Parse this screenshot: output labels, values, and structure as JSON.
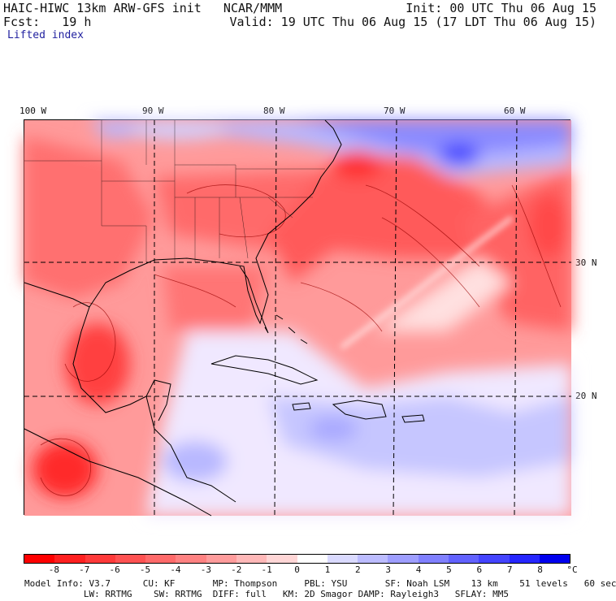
{
  "header": {
    "model_line": "HAIC-HIWC 13km ARW-GFS init   NCAR/MMM",
    "forecast_line": "Fcst:   19 h",
    "init_line": "Init: 00 UTC Thu 06 Aug 15",
    "valid_line": "Valid: 19 UTC Thu 06 Aug 15 (17 LDT Thu 06 Aug 15)",
    "field_label": "Lifted index"
  },
  "axes": {
    "longitude_labels": [
      "100 W",
      "90 W",
      "80 W",
      "70 W",
      "60 W"
    ],
    "latitude_labels": [
      "30 N",
      "20 N"
    ]
  },
  "colorbar": {
    "labels": [
      "-8",
      "-7",
      "-6",
      "-5",
      "-4",
      "-3",
      "-2",
      "-1",
      "0",
      "1",
      "2",
      "3",
      "4",
      "5",
      "6",
      "7",
      "8"
    ],
    "unit": "°C",
    "colors": [
      "#ff0000",
      "#ff2020",
      "#ff3a3a",
      "#ff5252",
      "#ff6a6a",
      "#ff8282",
      "#ff9c9c",
      "#ffb8b8",
      "#ffd6d6",
      "#ffffff",
      "#dadaff",
      "#bcbcff",
      "#9e9eff",
      "#8080ff",
      "#6262ff",
      "#4444ff",
      "#2626ff",
      "#0000ee"
    ]
  },
  "model_info": {
    "line1": "Model Info: V3.7      CU: KF       MP: Thompson     PBL: YSU       SF: Noah LSM    13 km    51 levels   60 sec",
    "line2": "           LW: RRTMG    SW: RRTMG  DIFF: full   KM: 2D Smagor DAMP: Rayleigh3   SFLAY: MM5"
  },
  "map_layers": [
    "lifted-index-shading",
    "coastlines",
    "state-borders",
    "lat-lon-grid",
    "contours"
  ]
}
